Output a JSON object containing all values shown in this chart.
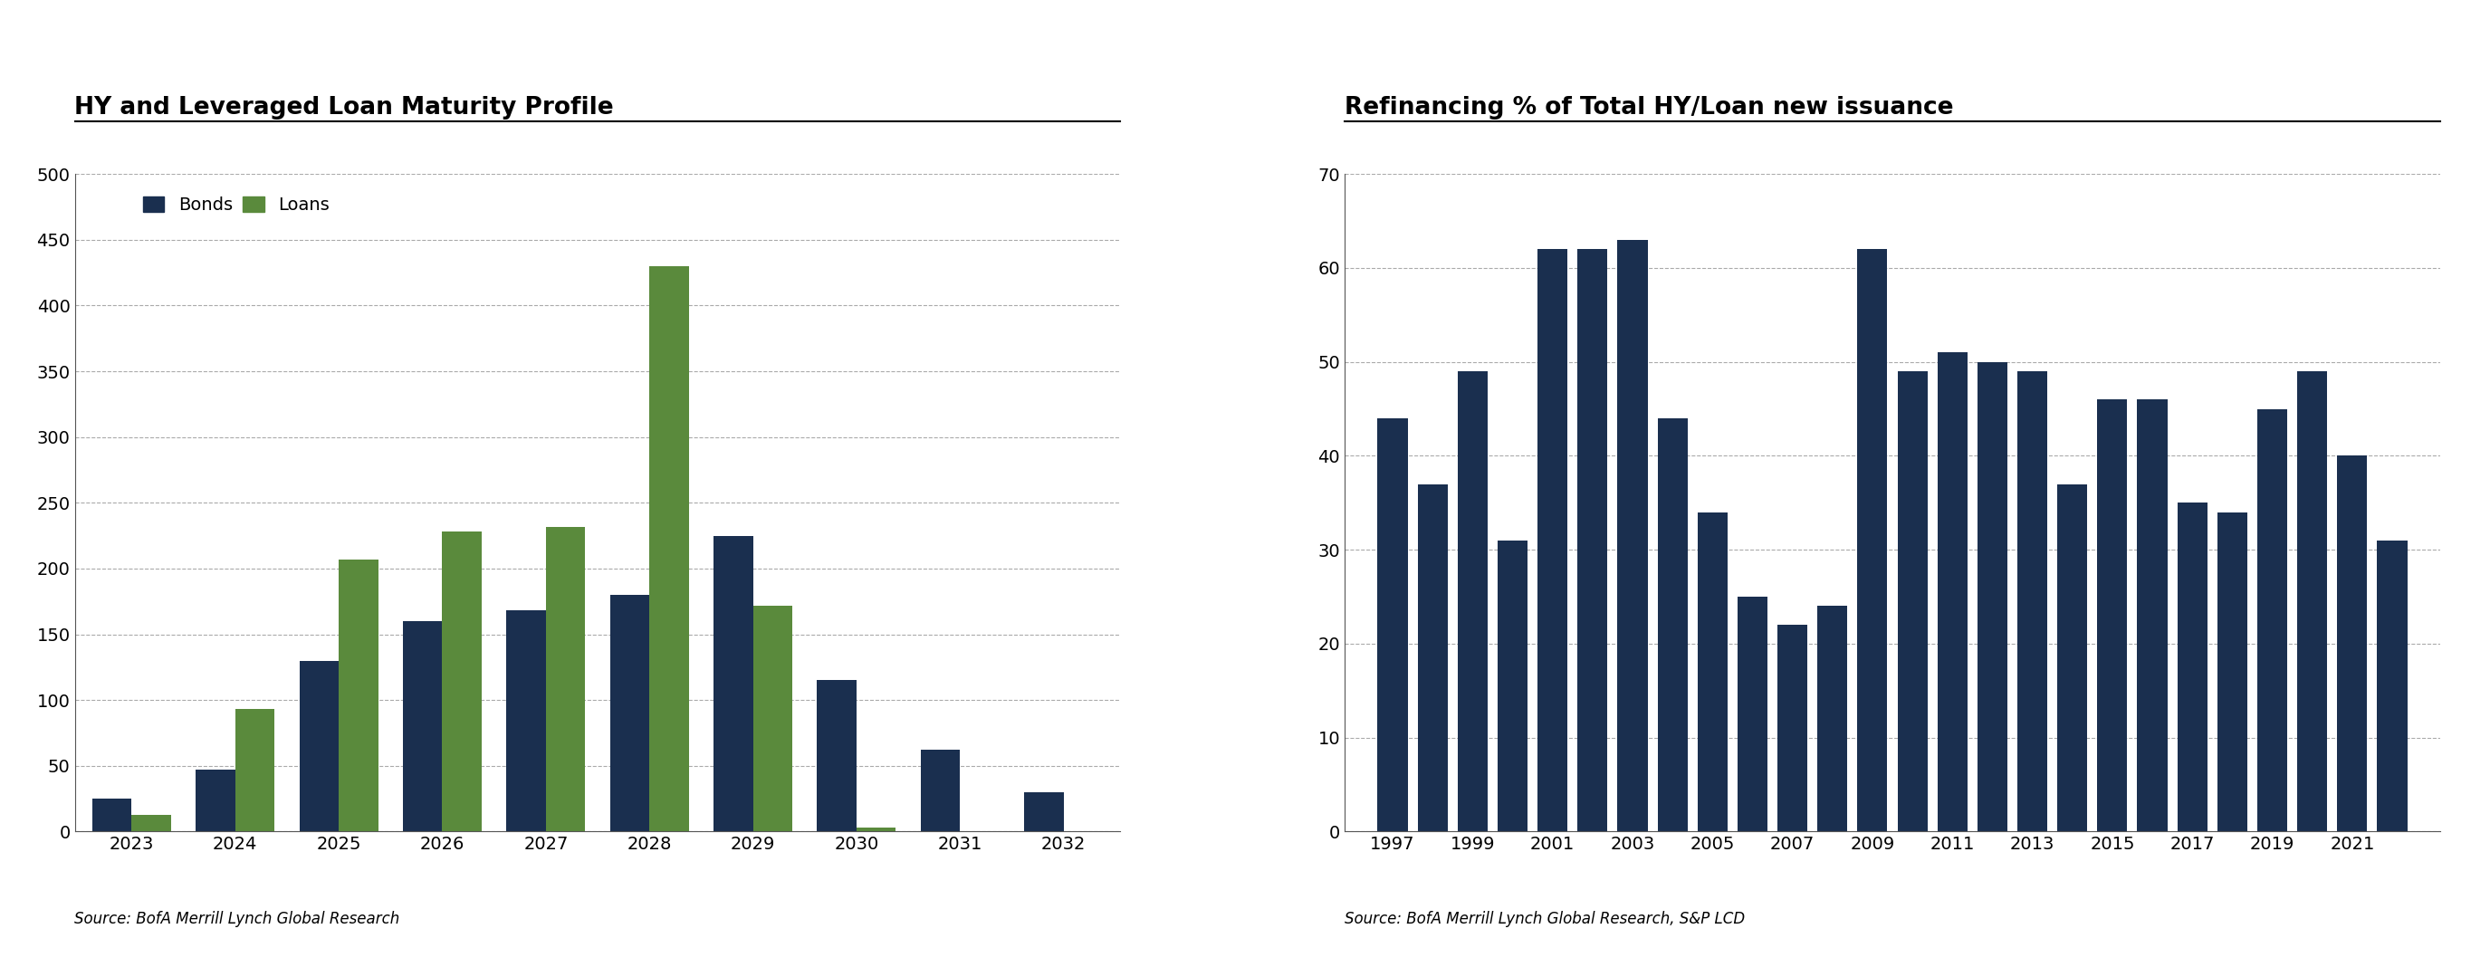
{
  "chart1": {
    "title": "HY and Leveraged Loan Maturity Profile",
    "source": "Source: BofA Merrill Lynch Global Research",
    "years": [
      2023,
      2024,
      2025,
      2026,
      2027,
      2028,
      2029,
      2030,
      2031,
      2032
    ],
    "bonds": [
      25,
      47,
      130,
      160,
      168,
      180,
      225,
      115,
      62,
      30
    ],
    "loans": [
      13,
      93,
      207,
      228,
      232,
      430,
      172,
      3,
      0,
      0
    ],
    "bond_color": "#1a2f4f",
    "loan_color": "#5a8a3c",
    "ylim": [
      0,
      500
    ],
    "yticks": [
      0,
      50,
      100,
      150,
      200,
      250,
      300,
      350,
      400,
      450,
      500
    ],
    "legend_labels": [
      "Bonds",
      "Loans"
    ]
  },
  "chart2": {
    "title": "Refinancing % of Total HY/Loan new issuance",
    "source": "Source: BofA Merrill Lynch Global Research, S&P LCD",
    "years": [
      1997,
      1998,
      1999,
      2000,
      2001,
      2002,
      2003,
      2004,
      2005,
      2006,
      2007,
      2008,
      2009,
      2010,
      2011,
      2012,
      2013,
      2014,
      2015,
      2016,
      2017,
      2018,
      2019,
      2020,
      2021,
      2022
    ],
    "values": [
      44,
      37,
      49,
      31,
      62,
      62,
      63,
      44,
      34,
      25,
      22,
      24,
      62,
      49,
      51,
      50,
      49,
      37,
      46,
      46,
      35,
      34,
      45,
      49,
      40,
      31
    ],
    "bar_color": "#1a2f4f",
    "ylim": [
      0,
      70
    ],
    "yticks": [
      0,
      10,
      20,
      30,
      40,
      50,
      60,
      70
    ],
    "xticks": [
      1997,
      1999,
      2001,
      2003,
      2005,
      2007,
      2009,
      2011,
      2013,
      2015,
      2017,
      2019,
      2021
    ]
  }
}
